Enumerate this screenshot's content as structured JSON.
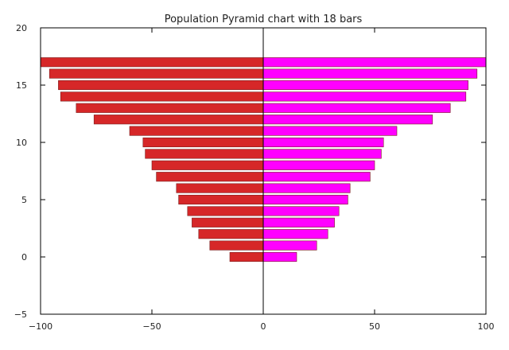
{
  "chart_data": {
    "type": "bar",
    "orientation": "horizontal",
    "title": "Population Pyramid chart with 18 bars",
    "xlabel": "",
    "ylabel": "",
    "xlim": [
      -100,
      100
    ],
    "ylim": [
      -5,
      20
    ],
    "xticks": [
      -100,
      -50,
      0,
      50,
      100
    ],
    "xtick_labels": [
      "−100",
      "−50",
      "0",
      "50",
      "100"
    ],
    "yticks": [
      -5,
      0,
      5,
      10,
      15,
      20
    ],
    "ytick_labels": [
      "−5",
      "0",
      "5",
      "10",
      "15",
      "20"
    ],
    "grid": false,
    "legend": "none",
    "categories": [
      0,
      1,
      2,
      3,
      4,
      5,
      6,
      7,
      8,
      9,
      10,
      11,
      12,
      13,
      14,
      15,
      16,
      17
    ],
    "series": [
      {
        "color": "#d62728",
        "values": [
          -15,
          -24,
          -29,
          -32,
          -34,
          -38,
          -39,
          -48,
          -50,
          -53,
          -54,
          -60,
          -76,
          -84,
          -91,
          -92,
          -96,
          -100
        ]
      },
      {
        "color": "#ff00ff",
        "values": [
          15,
          24,
          29,
          32,
          34,
          38,
          39,
          48,
          50,
          53,
          54,
          60,
          76,
          84,
          91,
          92,
          96,
          100
        ]
      }
    ]
  }
}
